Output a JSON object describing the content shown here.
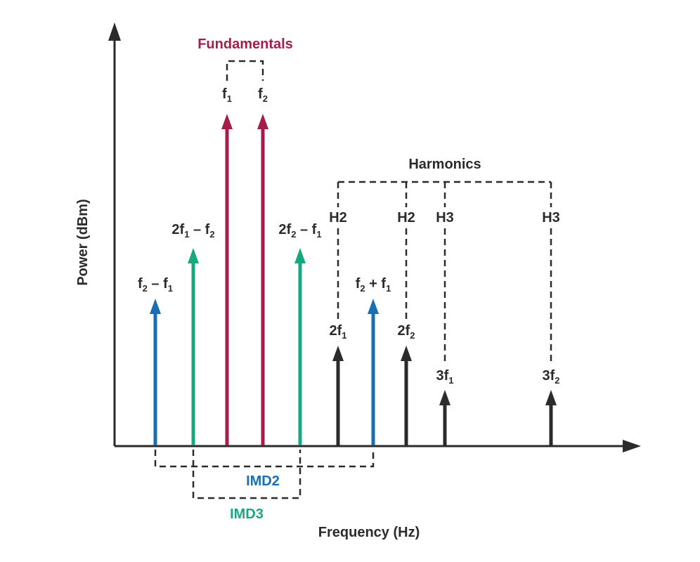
{
  "axes": {
    "x_label": "Frequency (Hz)",
    "y_label": "Power (dBm)"
  },
  "colors": {
    "fundamental": "#a51d4a",
    "imd2": "#1a6fb0",
    "imd3": "#17a882",
    "harmonic": "#2b2b2e"
  },
  "groups": {
    "fundamentals": "Fundamentals",
    "harmonics": "Harmonics",
    "imd2": "IMD2",
    "imd3": "IMD3",
    "h2": "H2",
    "h3": "H3"
  },
  "tones": [
    {
      "id": "f2-minus-f1",
      "kind": "imd2",
      "label": [
        "f",
        "2",
        " – f",
        "1"
      ]
    },
    {
      "id": "2f1-minus-f2",
      "kind": "imd3",
      "label": [
        "2f",
        "1",
        " – f",
        "2"
      ]
    },
    {
      "id": "f1",
      "kind": "fundamental",
      "label": [
        "f",
        "1"
      ]
    },
    {
      "id": "f2",
      "kind": "fundamental",
      "label": [
        "f",
        "2"
      ]
    },
    {
      "id": "2f2-minus-f1",
      "kind": "imd3",
      "label": [
        "2f",
        "2",
        " – f",
        "1"
      ]
    },
    {
      "id": "2f1",
      "kind": "harmonic",
      "label": [
        "2f",
        "1"
      ]
    },
    {
      "id": "f2-plus-f1",
      "kind": "imd2",
      "label": [
        "f",
        "2",
        " + f",
        "1"
      ]
    },
    {
      "id": "2f2",
      "kind": "harmonic",
      "label": [
        "2f",
        "2"
      ]
    },
    {
      "id": "3f1",
      "kind": "harmonic",
      "label": [
        "3f",
        "1"
      ]
    },
    {
      "id": "3f2",
      "kind": "harmonic",
      "label": [
        "3f",
        "2"
      ]
    }
  ]
}
